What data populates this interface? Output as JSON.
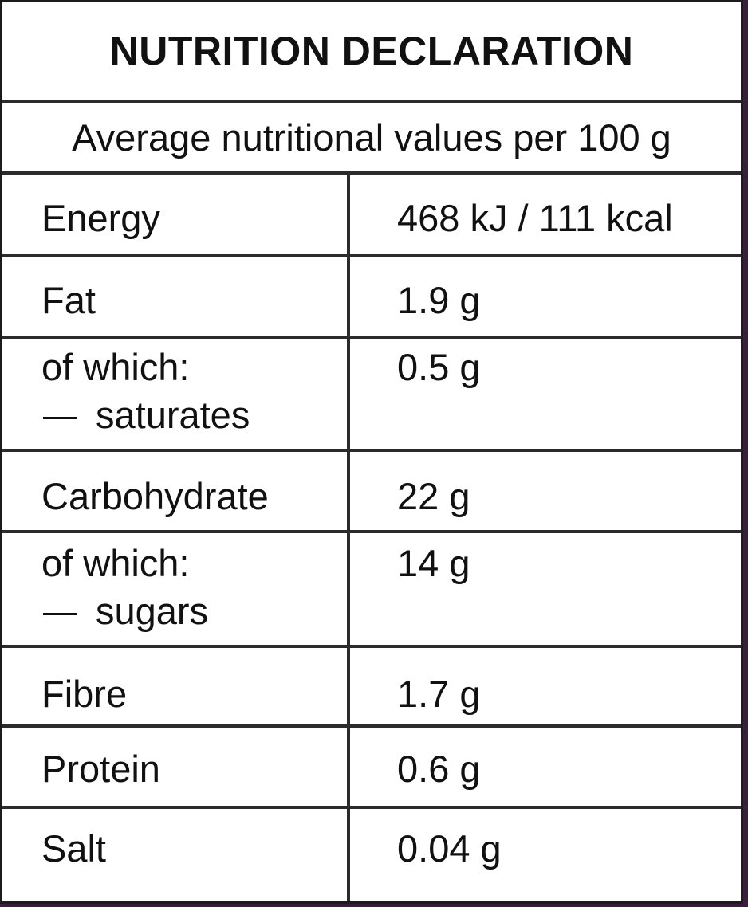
{
  "title": "NUTRITION DECLARATION",
  "subtitle": "Average nutritional values per 100 g",
  "rows": [
    {
      "label": "Energy",
      "value": "468 kJ / 111 kcal"
    },
    {
      "label": "Fat",
      "value": "1.9 g"
    },
    {
      "label": "of which:",
      "sub_label": "saturates",
      "value": "0.5 g"
    },
    {
      "label": "Carbohydrate",
      "value": "22 g"
    },
    {
      "label": "of which:",
      "sub_label": "sugars",
      "value": "14 g"
    },
    {
      "label": "Fibre",
      "value": "1.7 g"
    },
    {
      "label": "Protein",
      "value": "0.6 g"
    },
    {
      "label": "Salt",
      "value": "0.04 g"
    }
  ]
}
